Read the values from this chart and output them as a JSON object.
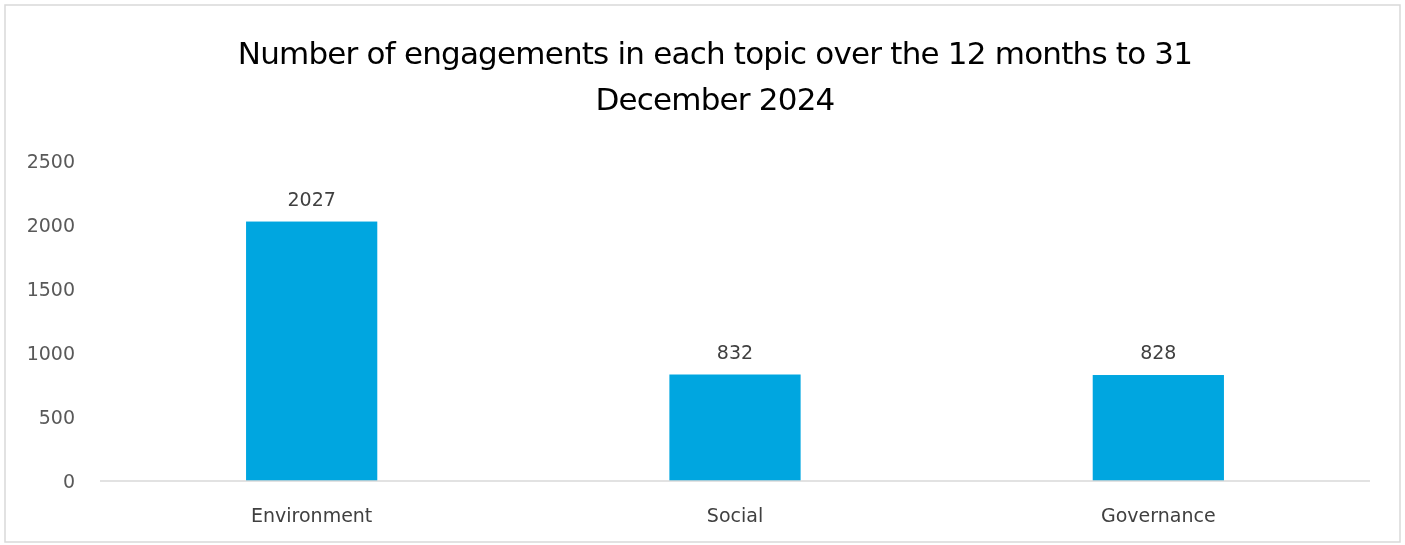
{
  "chart_data": {
    "type": "bar",
    "title": "Number of engagements in each topic over the 12 months to 31 December 2024",
    "categories": [
      "Environment",
      "Social",
      "Governance"
    ],
    "values": [
      2027,
      832,
      828
    ],
    "color": "#00a6e0",
    "ylim": [
      0,
      2500
    ],
    "yticks": [
      0,
      500,
      1000,
      1500,
      2000,
      2500
    ],
    "grid": false,
    "data_labels": true
  }
}
